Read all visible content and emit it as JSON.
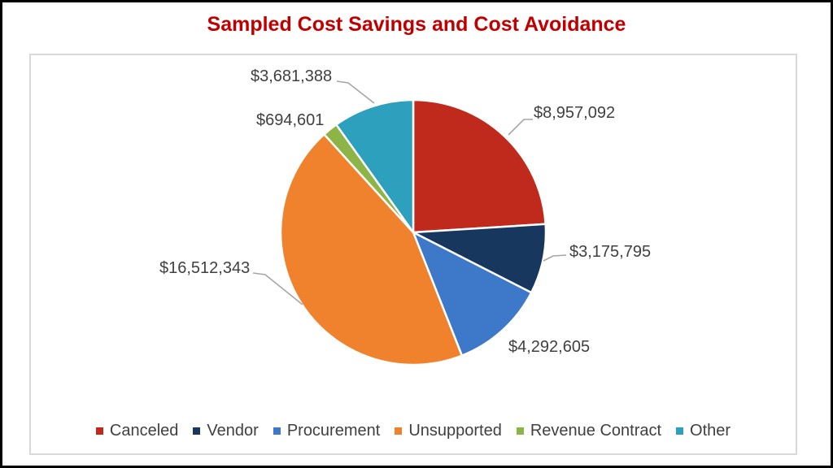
{
  "title": "Sampled Cost Savings and Cost Avoidance",
  "colors": {
    "title_color": "#c00000",
    "label_color": "#404040",
    "leader_color": "#a6a6a6",
    "frame_border_color": "#d9d9d9",
    "outer_border_color": "#000000",
    "background": "#ffffff"
  },
  "chart_data": {
    "type": "pie",
    "title": "Sampled Cost Savings and Cost Avoidance",
    "unit": "USD",
    "start_angle_deg": 0,
    "direction": "clockwise",
    "legend_position": "bottom",
    "data_labels_visible": true,
    "series": [
      {
        "name": "Canceled",
        "value": 8957092,
        "label": "$8,957,092",
        "color": "#c02a1c"
      },
      {
        "name": "Vendor",
        "value": 3175795,
        "label": "$3,175,795",
        "color": "#17375e"
      },
      {
        "name": "Procurement",
        "value": 4292605,
        "label": "$4,292,605",
        "color": "#3e79c9"
      },
      {
        "name": "Unsupported",
        "value": 16512343,
        "label": "$16,512,343",
        "color": "#f0812d"
      },
      {
        "name": "Revenue Contract",
        "value": 694601,
        "label": "$694,601",
        "color": "#8cb446"
      },
      {
        "name": "Other",
        "value": 3681388,
        "label": "$3,681,388",
        "color": "#2da0be"
      }
    ]
  }
}
